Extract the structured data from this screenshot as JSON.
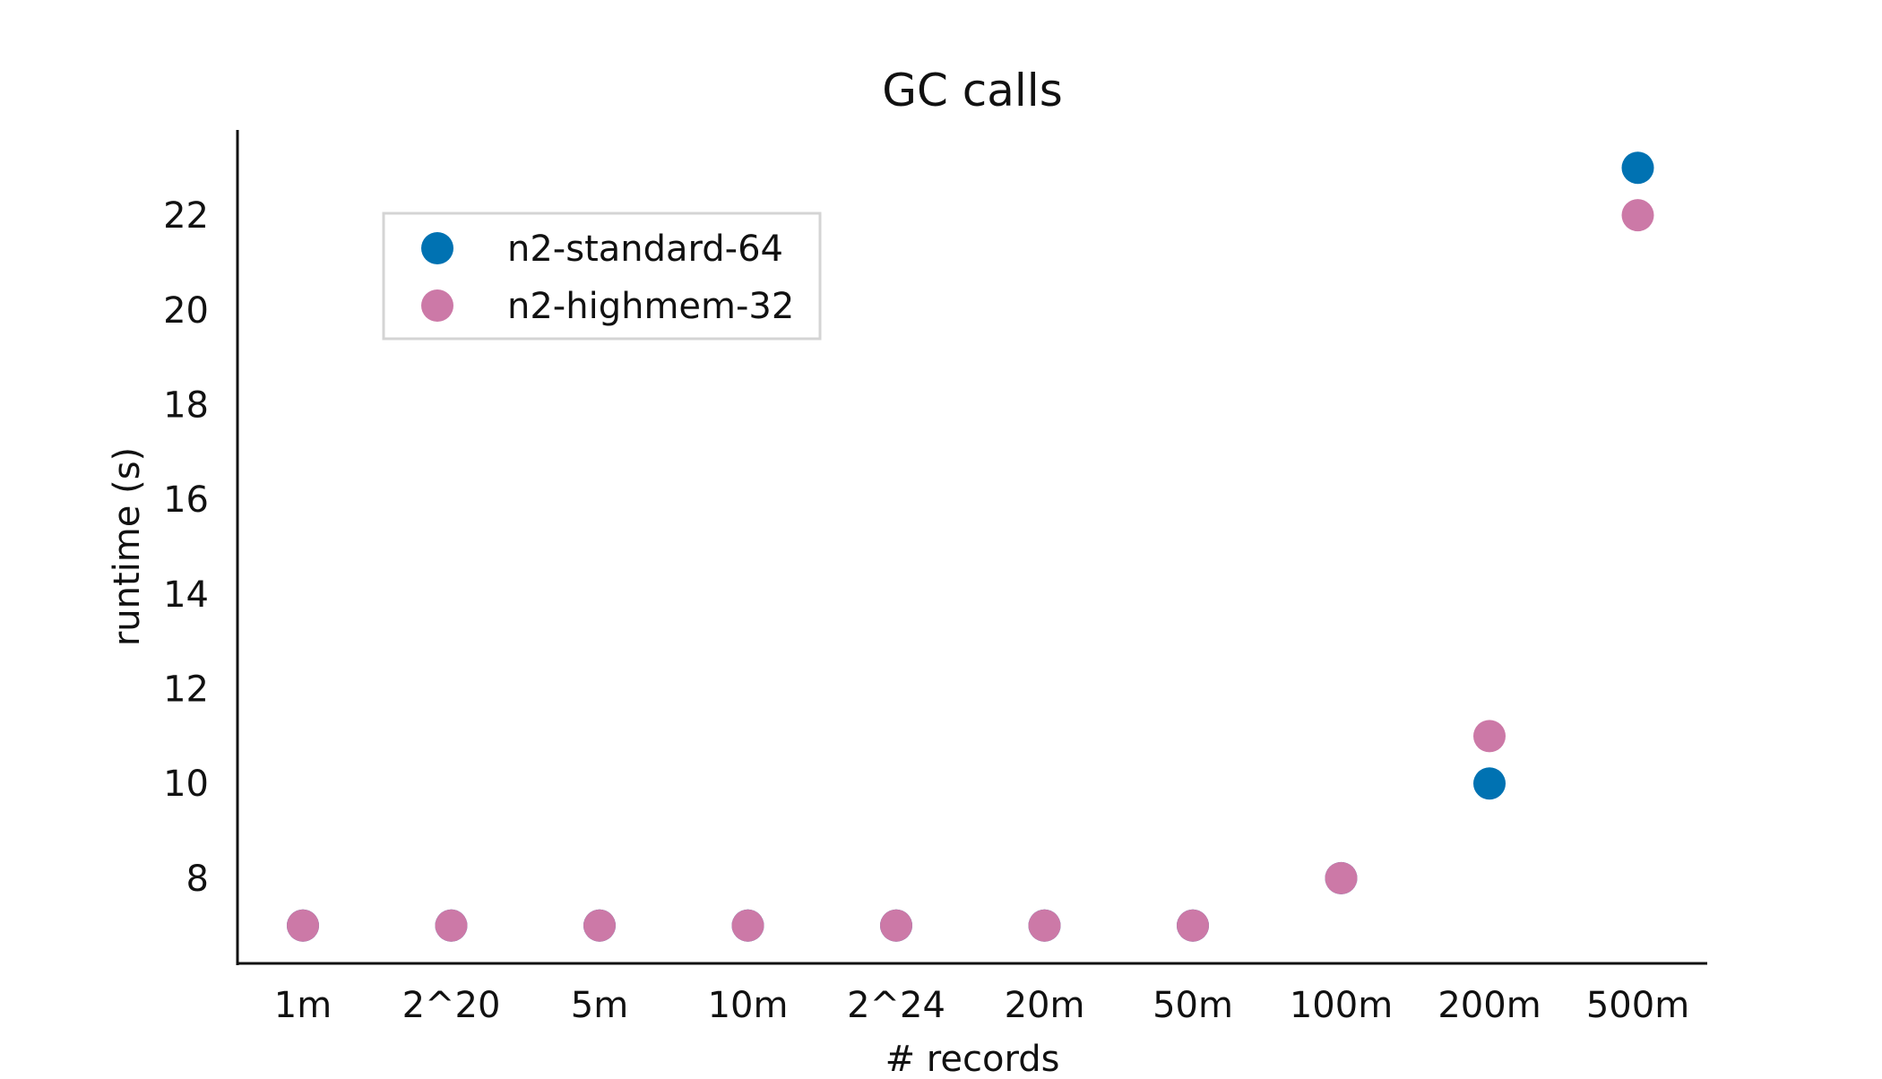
{
  "chart_data": {
    "type": "scatter",
    "title": "GC calls",
    "xlabel": "# records",
    "ylabel": "runtime (s)",
    "categories": [
      "1m",
      "2^20",
      "5m",
      "10m",
      "2^24",
      "20m",
      "50m",
      "100m",
      "200m",
      "500m"
    ],
    "yticks": [
      8,
      10,
      12,
      14,
      16,
      18,
      20,
      22
    ],
    "ylim": [
      6.2,
      23.8
    ],
    "grid": false,
    "legend_position": "top-left",
    "series": [
      {
        "name": "n2-standard-64",
        "color": "#0072b2",
        "values": [
          7,
          7,
          7,
          7,
          7,
          7,
          7,
          8,
          10,
          23
        ]
      },
      {
        "name": "n2-highmem-32",
        "color": "#cc79a7",
        "values": [
          7,
          7,
          7,
          7,
          7,
          7,
          7,
          8,
          11,
          22
        ]
      }
    ]
  }
}
